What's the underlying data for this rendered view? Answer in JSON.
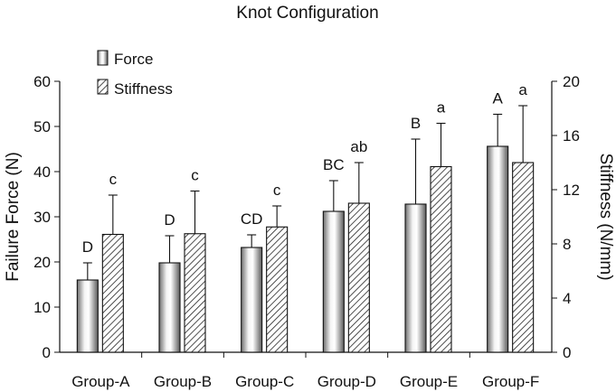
{
  "chart_data": {
    "type": "bar",
    "title": "Knot Configuration",
    "categories": [
      "Group-A",
      "Group-B",
      "Group-C",
      "Group-D",
      "Group-E",
      "Group-F"
    ],
    "left_axis": {
      "label": "Failure Force (N)",
      "range": [
        0,
        60
      ],
      "ticks": [
        "0",
        "10",
        "20",
        "30",
        "40",
        "50",
        "60"
      ]
    },
    "right_axis": {
      "label": "Stiffness (N/mm)",
      "range": [
        0,
        20
      ],
      "ticks": [
        "0",
        "4",
        "8",
        "12",
        "16",
        "20"
      ]
    },
    "grid": false,
    "legend_position": "top-left",
    "series": [
      {
        "name": "Force",
        "axis": "left",
        "pattern": "cylinder-gradient",
        "values": [
          16,
          19.8,
          23.2,
          31.2,
          32.8,
          45.6
        ],
        "error_upper": [
          19.8,
          25.8,
          26,
          38,
          47.2,
          52.7
        ],
        "letters": [
          "D",
          "D",
          "CD",
          "BC",
          "B",
          "A"
        ]
      },
      {
        "name": "Stiffness",
        "axis": "right",
        "pattern": "diagonal-hatch",
        "values": [
          8.7,
          8.75,
          9.25,
          11,
          13.7,
          14
        ],
        "error_upper": [
          11.6,
          11.9,
          10.8,
          14,
          16.9,
          18.2
        ],
        "letters": [
          "c",
          "c",
          "c",
          "ab",
          "a",
          "a"
        ]
      }
    ]
  }
}
